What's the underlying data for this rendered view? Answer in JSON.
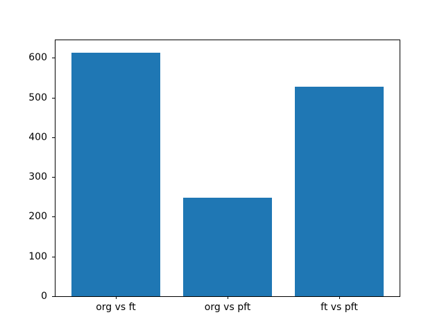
{
  "chart_data": {
    "type": "bar",
    "title": "",
    "xlabel": "",
    "ylabel": "",
    "categories": [
      "org vs ft",
      "org vs pft",
      "ft vs pft"
    ],
    "values": [
      613,
      248,
      528
    ],
    "yticks": [
      0,
      100,
      200,
      300,
      400,
      500,
      600
    ],
    "ylim": [
      0,
      644
    ],
    "bar_color": "#1f77b4",
    "background_color": "#ffffff",
    "spine_color": "#000000",
    "text_color": "#000000",
    "bar_width_fraction": 0.8,
    "x_margin": 0.05,
    "grid": false,
    "legend": "none"
  }
}
